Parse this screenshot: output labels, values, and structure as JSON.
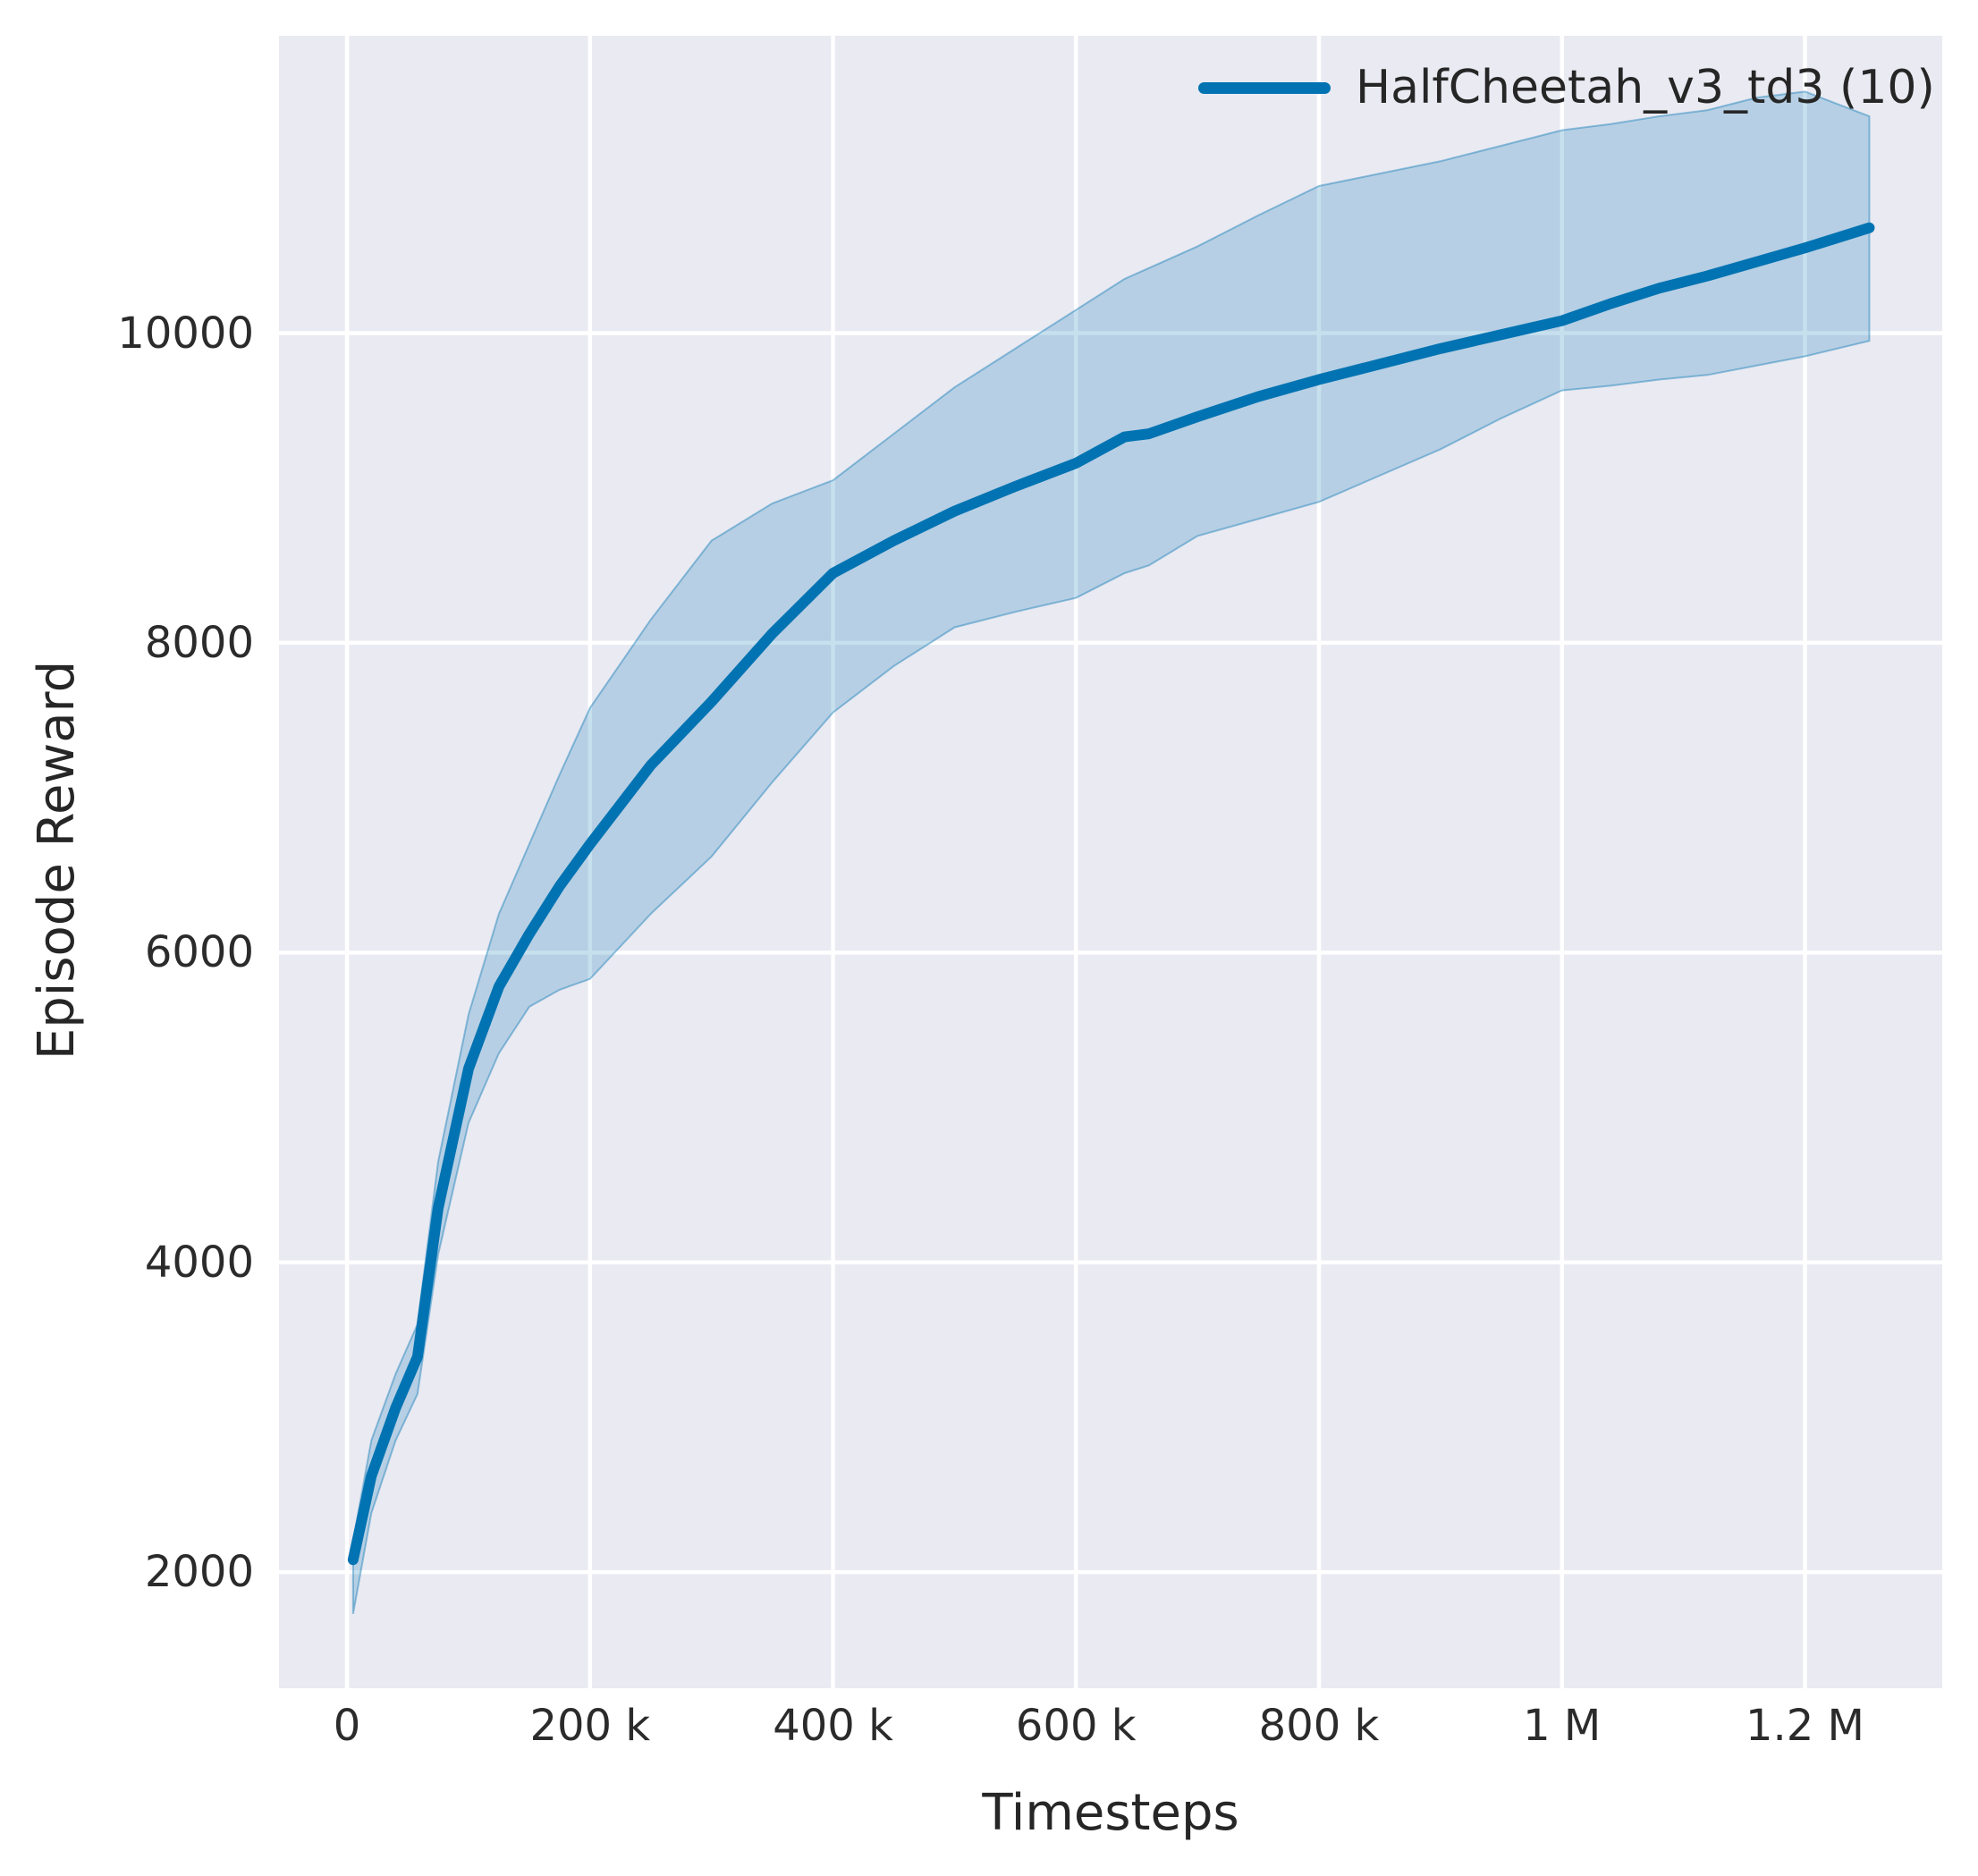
{
  "figure": {
    "background_color": "#ffffff",
    "plot_background_color": "#eaeaf2",
    "grid_color": "#ffffff",
    "text_color": "#262626",
    "accent_color": "#0173b2"
  },
  "legend": {
    "entries": [
      {
        "label": "HalfCheetah_v3_td3 (10)",
        "color": "#0173b2"
      }
    ]
  },
  "axes": {
    "x": {
      "label": "Timesteps",
      "ticks": [
        {
          "value": 0,
          "label": "0"
        },
        {
          "value": 200000,
          "label": "200 k"
        },
        {
          "value": 400000,
          "label": "400 k"
        },
        {
          "value": 600000,
          "label": "600 k"
        },
        {
          "value": 800000,
          "label": "800 k"
        },
        {
          "value": 1000000,
          "label": "1 M"
        },
        {
          "value": 1200000,
          "label": "1.2 M"
        }
      ]
    },
    "y": {
      "label": "Episode Reward",
      "ticks": [
        {
          "value": 2000,
          "label": "2000"
        },
        {
          "value": 4000,
          "label": "4000"
        },
        {
          "value": 6000,
          "label": "6000"
        },
        {
          "value": 8000,
          "label": "8000"
        },
        {
          "value": 10000,
          "label": "10000"
        }
      ]
    }
  },
  "chart_data": {
    "type": "line",
    "title": "",
    "xlabel": "Timesteps",
    "ylabel": "Episode Reward",
    "xlim": [
      -56000,
      1313000
    ],
    "ylim": [
      1250,
      11920
    ],
    "grid": true,
    "legend_position": "upper right",
    "series": [
      {
        "name": "HalfCheetah_v3_td3 (10)",
        "color": "#0173b2",
        "band": true,
        "x": [
          5000,
          20000,
          40000,
          58000,
          75000,
          100000,
          125000,
          150000,
          175000,
          200000,
          250000,
          300000,
          350000,
          400000,
          450000,
          500000,
          550000,
          600000,
          640000,
          660000,
          700000,
          750000,
          800000,
          850000,
          900000,
          950000,
          1000000,
          1040000,
          1080000,
          1120000,
          1160000,
          1200000,
          1253000
        ],
        "y": [
          2080,
          2620,
          3060,
          3390,
          4350,
          5250,
          5780,
          6120,
          6430,
          6700,
          7210,
          7620,
          8060,
          8450,
          8660,
          8850,
          9010,
          9160,
          9330,
          9350,
          9460,
          9590,
          9700,
          9800,
          9900,
          9990,
          10080,
          10190,
          10290,
          10370,
          10460,
          10550,
          10680
        ],
        "band_lower": [
          1730,
          2380,
          2850,
          3150,
          4050,
          4900,
          5350,
          5650,
          5760,
          5830,
          6250,
          6620,
          7100,
          7550,
          7850,
          8100,
          8200,
          8290,
          8450,
          8500,
          8690,
          8800,
          8910,
          9080,
          9250,
          9450,
          9630,
          9660,
          9700,
          9730,
          9790,
          9850,
          9950
        ],
        "band_upper": [
          2200,
          2850,
          3280,
          3600,
          4650,
          5600,
          6250,
          6700,
          7150,
          7580,
          8150,
          8660,
          8900,
          9050,
          9350,
          9650,
          9900,
          10150,
          10350,
          10420,
          10560,
          10760,
          10950,
          11030,
          11110,
          11210,
          11310,
          11350,
          11400,
          11440,
          11520,
          11560,
          11400
        ]
      }
    ]
  }
}
